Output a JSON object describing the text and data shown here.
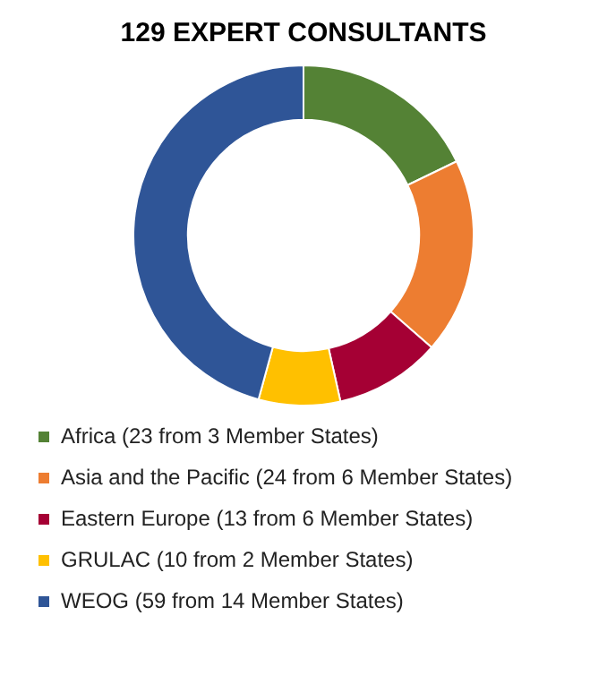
{
  "chart_data": {
    "type": "donut",
    "title": "129 EXPERT CONSULTANTS",
    "categories": [
      "Africa (23 from 3 Member States)",
      "Asia and the Pacific (24 from 6 Member States)",
      "Eastern Europe (13 from 6 Member States)",
      "GRULAC (10 from 2 Member States)",
      "WEOG (59 from 14 Member States)"
    ],
    "values": [
      23,
      24,
      13,
      10,
      59
    ],
    "colors": [
      "#548235",
      "#ed7d31",
      "#a50034",
      "#ffc000",
      "#2f5597"
    ],
    "legend": "bottom"
  }
}
